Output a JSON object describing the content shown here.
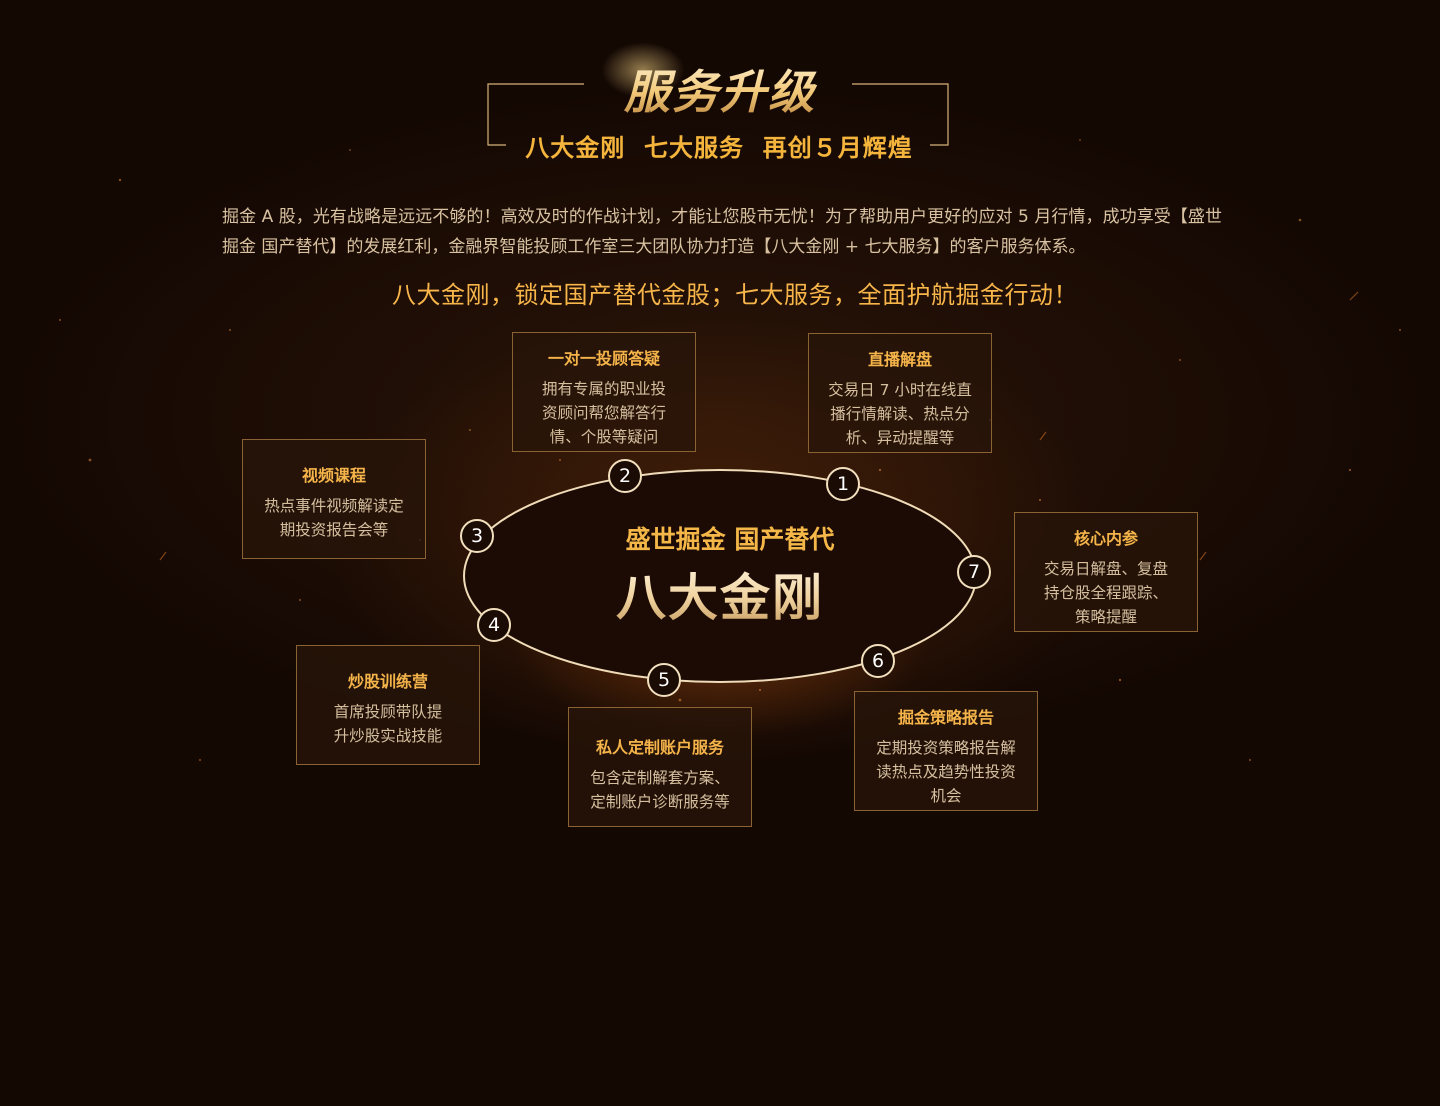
{
  "header": {
    "title": "服务升级",
    "subtitle": "八大金刚  七大服务  再创５月辉煌"
  },
  "intro": "掘金 A 股，光有战略是远远不够的！高效及时的作战计划，才能让您股市无忧！为了帮助用户更好的应对 5 月行情，成功享受【盛世掘金 国产替代】的发展红利，金融界智能投顾工作室三大团队协力打造【八大金刚 + 七大服务】的客户服务体系。",
  "slogan": "八大金刚，锁定国产替代金股；七大服务，全面护航掘金行动！",
  "center": {
    "subtitle": "盛世掘金 国产替代",
    "title": "八大金刚"
  },
  "services": [
    {
      "num": "1",
      "title": "直播解盘",
      "desc": "交易日 7 小时在线直播行情解读、热点分析、异动提醒等"
    },
    {
      "num": "2",
      "title": "一对一投顾答疑",
      "desc": "拥有专属的职业投资顾问帮您解答行情、个股等疑问"
    },
    {
      "num": "3",
      "title": "视频课程",
      "desc": "热点事件视频解读定期投资报告会等"
    },
    {
      "num": "4",
      "title": "炒股训练营",
      "desc": "首席投顾带队提升炒股实战技能"
    },
    {
      "num": "5",
      "title": "私人定制账户服务",
      "desc": "包含定制解套方案、定制账户诊断服务等"
    },
    {
      "num": "6",
      "title": "掘金策略报告",
      "desc": "定期投资策略报告解读热点及趋势性投资机会"
    },
    {
      "num": "7",
      "title": "核心内参",
      "desc": "交易日解盘、复盘持仓股全程跟踪、策略提醒"
    }
  ],
  "colors": {
    "background": "#140803",
    "accent": "#f5b44a",
    "frame": "#d7b27a",
    "card_border": "#8a6234",
    "body_text": "#d9c2a1"
  }
}
